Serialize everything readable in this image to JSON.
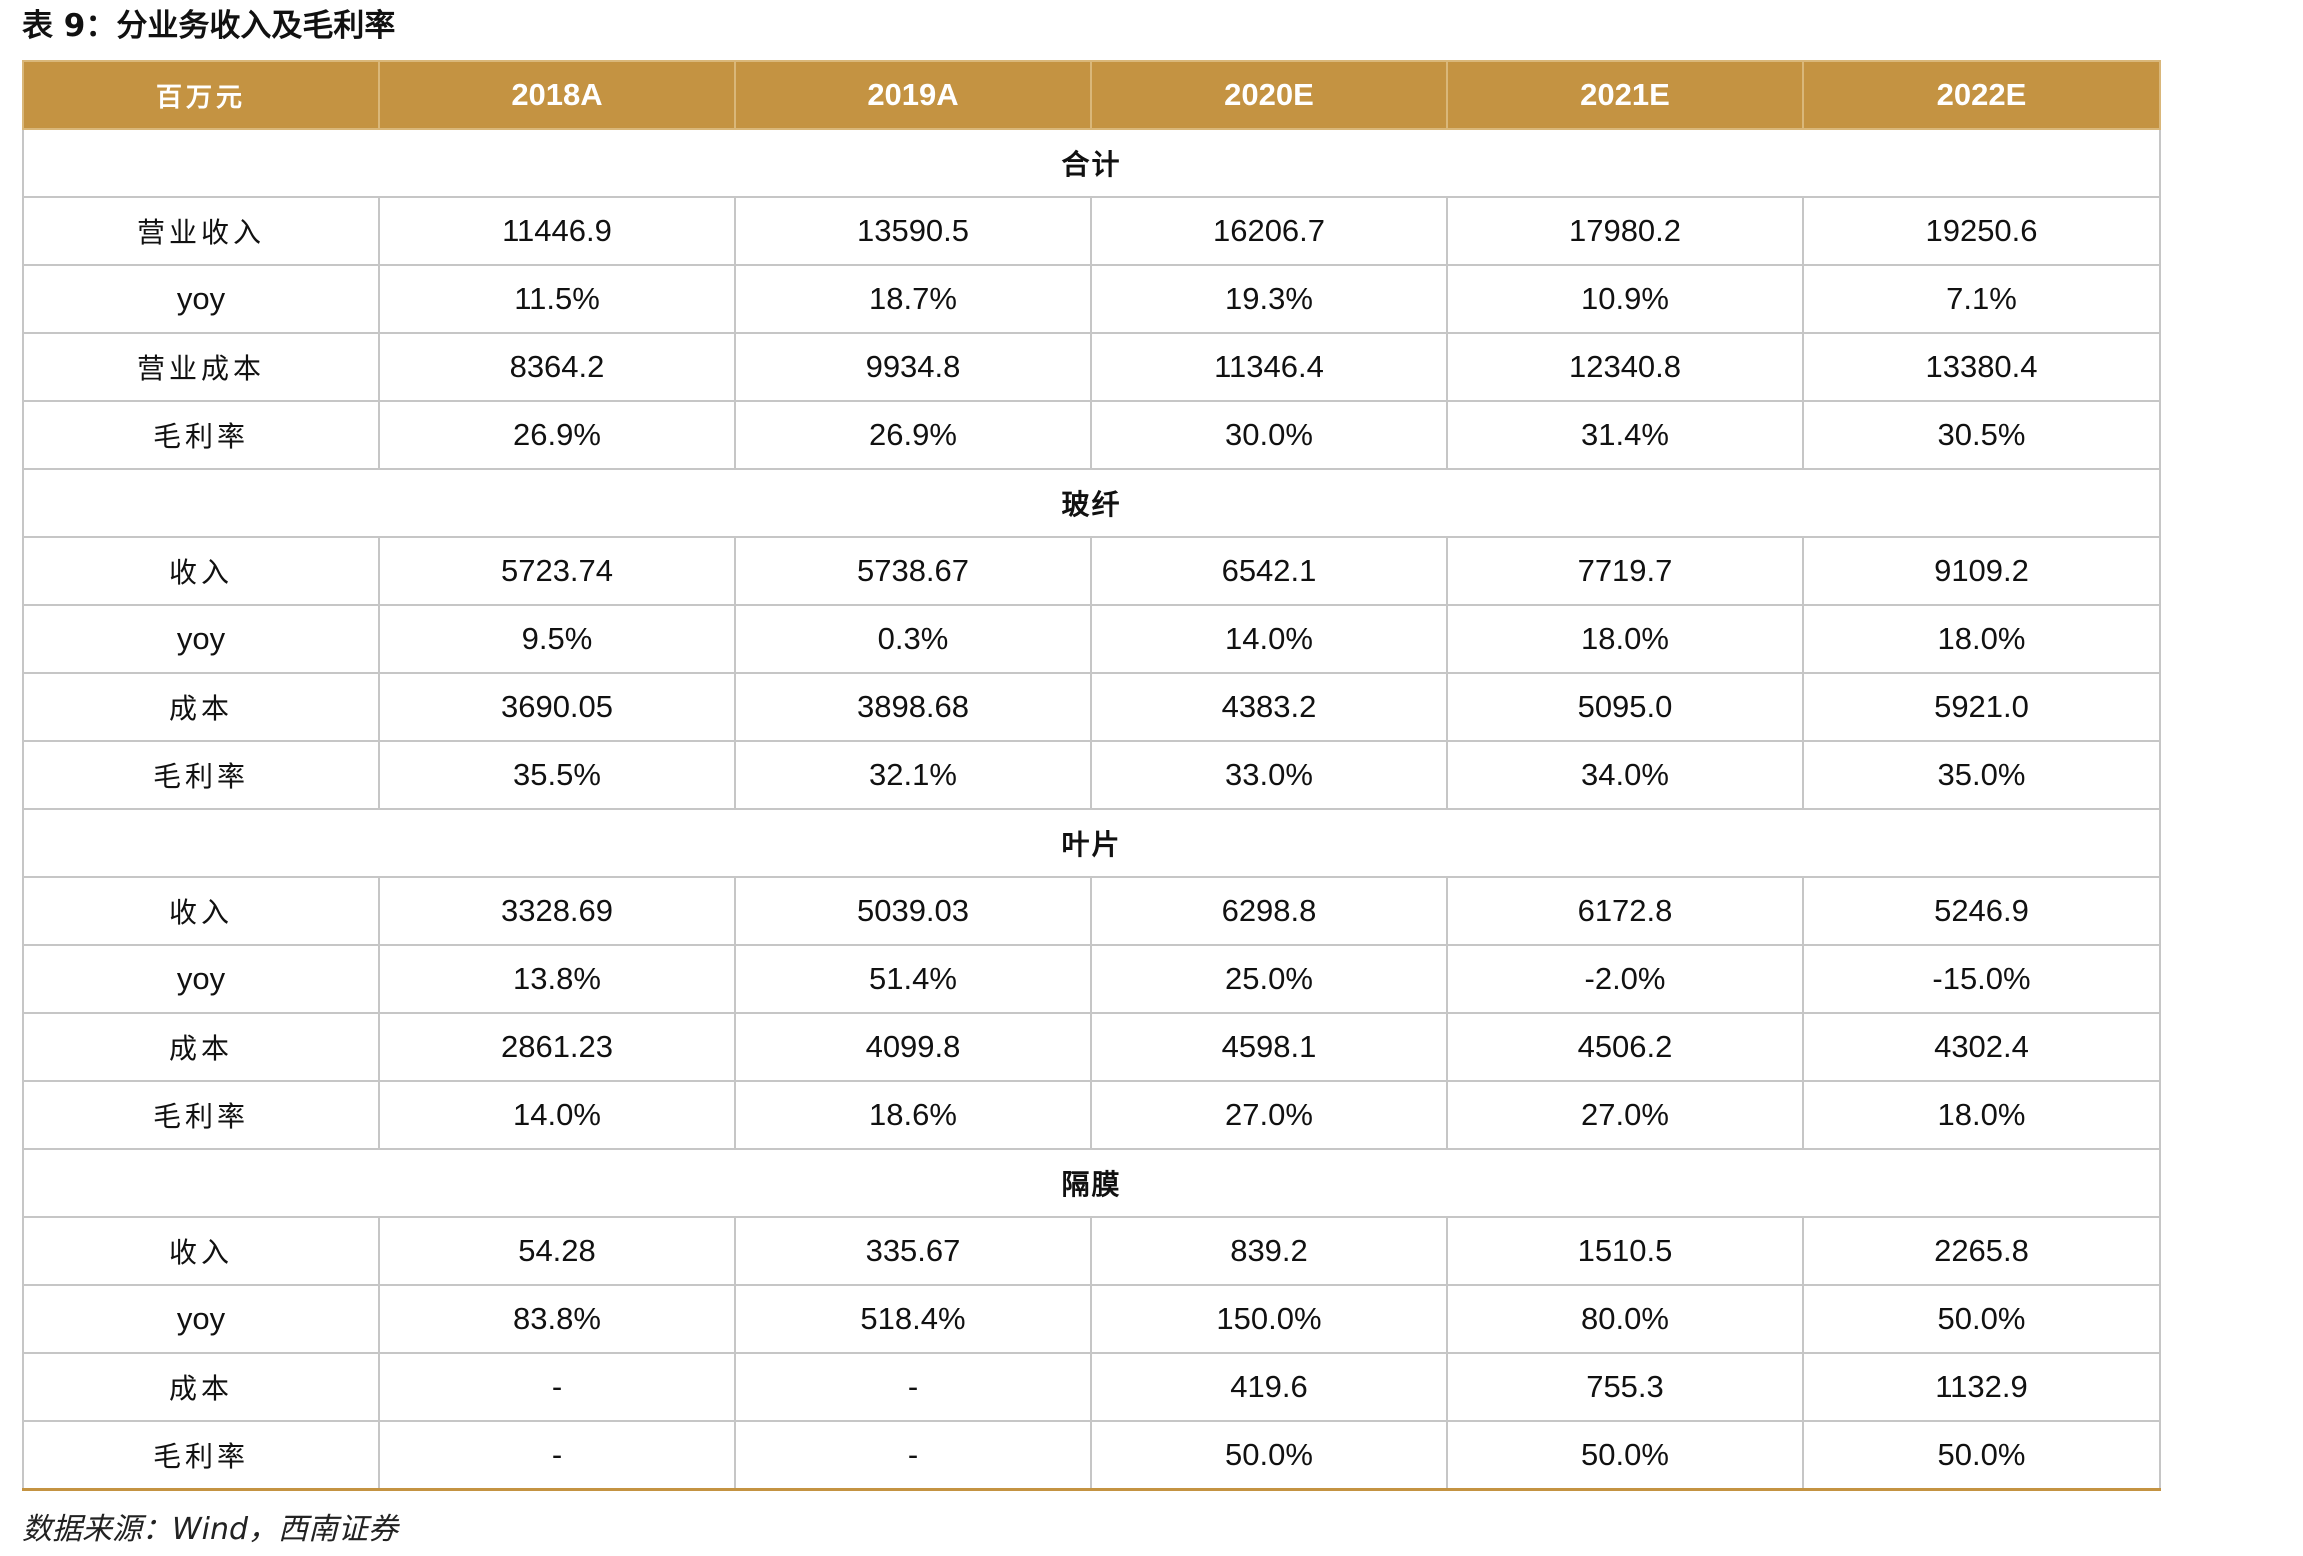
{
  "caption": "表 9：分业务收入及毛利率",
  "source": "数据来源：Wind，西南证券",
  "table": {
    "columns": [
      "百万元",
      "2018A",
      "2019A",
      "2020E",
      "2021E",
      "2022E"
    ],
    "sections": [
      {
        "title": "合计",
        "rows": [
          {
            "label": "营业收入",
            "values": [
              "11446.9",
              "13590.5",
              "16206.7",
              "17980.2",
              "19250.6"
            ]
          },
          {
            "label": "yoy",
            "values": [
              "11.5%",
              "18.7%",
              "19.3%",
              "10.9%",
              "7.1%"
            ]
          },
          {
            "label": "营业成本",
            "values": [
              "8364.2",
              "9934.8",
              "11346.4",
              "12340.8",
              "13380.4"
            ]
          },
          {
            "label": "毛利率",
            "values": [
              "26.9%",
              "26.9%",
              "30.0%",
              "31.4%",
              "30.5%"
            ]
          }
        ]
      },
      {
        "title": "玻纤",
        "rows": [
          {
            "label": "收入",
            "values": [
              "5723.74",
              "5738.67",
              "6542.1",
              "7719.7",
              "9109.2"
            ]
          },
          {
            "label": "yoy",
            "values": [
              "9.5%",
              "0.3%",
              "14.0%",
              "18.0%",
              "18.0%"
            ]
          },
          {
            "label": "成本",
            "values": [
              "3690.05",
              "3898.68",
              "4383.2",
              "5095.0",
              "5921.0"
            ]
          },
          {
            "label": "毛利率",
            "values": [
              "35.5%",
              "32.1%",
              "33.0%",
              "34.0%",
              "35.0%"
            ]
          }
        ]
      },
      {
        "title": "叶片",
        "rows": [
          {
            "label": "收入",
            "values": [
              "3328.69",
              "5039.03",
              "6298.8",
              "6172.8",
              "5246.9"
            ]
          },
          {
            "label": "yoy",
            "values": [
              "13.8%",
              "51.4%",
              "25.0%",
              "-2.0%",
              "-15.0%"
            ]
          },
          {
            "label": "成本",
            "values": [
              "2861.23",
              "4099.8",
              "4598.1",
              "4506.2",
              "4302.4"
            ]
          },
          {
            "label": "毛利率",
            "values": [
              "14.0%",
              "18.6%",
              "27.0%",
              "27.0%",
              "18.0%"
            ]
          }
        ]
      },
      {
        "title": "隔膜",
        "rows": [
          {
            "label": "收入",
            "values": [
              "54.28",
              "335.67",
              "839.2",
              "1510.5",
              "2265.8"
            ]
          },
          {
            "label": "yoy",
            "values": [
              "83.8%",
              "518.4%",
              "150.0%",
              "80.0%",
              "50.0%"
            ]
          },
          {
            "label": "成本",
            "values": [
              "-",
              "-",
              "419.6",
              "755.3",
              "1132.9"
            ]
          },
          {
            "label": "毛利率",
            "values": [
              "-",
              "-",
              "50.0%",
              "50.0%",
              "50.0%"
            ]
          }
        ]
      }
    ]
  },
  "colors": {
    "header_bg": "#c49342",
    "header_text": "#ffffff",
    "grid": "#c6c6c6"
  }
}
